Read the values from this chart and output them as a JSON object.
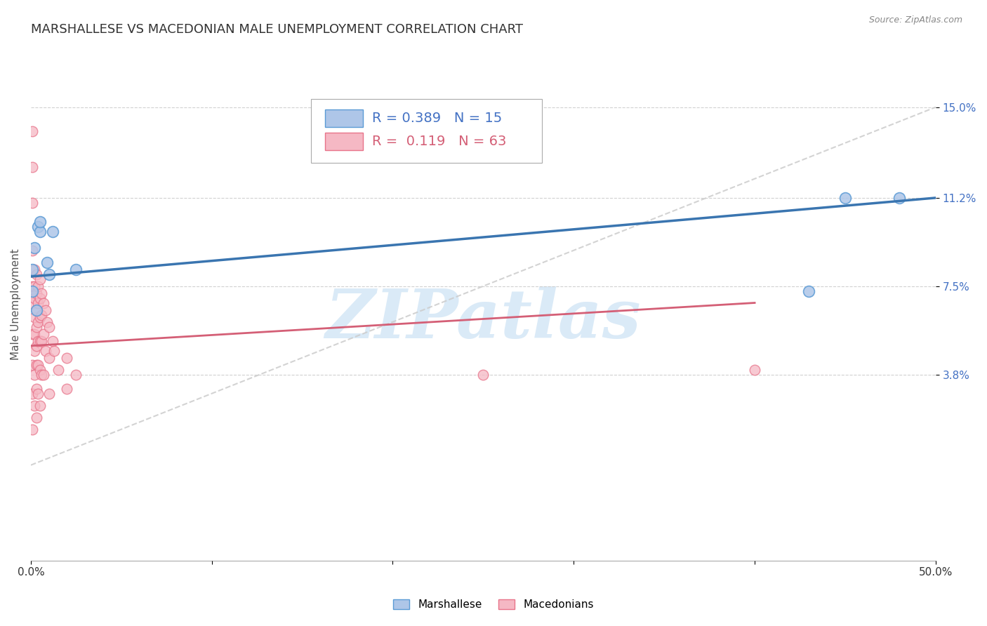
{
  "title": "MARSHALLESE VS MACEDONIAN MALE UNEMPLOYMENT CORRELATION CHART",
  "source": "Source: ZipAtlas.com",
  "ylabel": "Male Unemployment",
  "xlabel": "",
  "xlim": [
    0.0,
    0.5
  ],
  "ylim": [
    -0.04,
    0.175
  ],
  "yticks": [
    0.038,
    0.075,
    0.112,
    0.15
  ],
  "ytick_labels": [
    "3.8%",
    "7.5%",
    "11.2%",
    "15.0%"
  ],
  "blue_color": "#aec6e8",
  "pink_color": "#f5b8c4",
  "blue_edge": "#5b9bd5",
  "pink_edge": "#e8748a",
  "blue_line_color": "#3a75b0",
  "pink_line_color": "#d45f76",
  "watermark": "ZIPatlas",
  "watermark_color": "#daeaf7",
  "background_color": "#ffffff",
  "title_fontsize": 13,
  "label_fontsize": 11,
  "tick_fontsize": 11,
  "legend_fontsize": 14,
  "blue_x": [
    0.001,
    0.001,
    0.002,
    0.003,
    0.004,
    0.005,
    0.005,
    0.009,
    0.01,
    0.012,
    0.025,
    0.43,
    0.45,
    0.48
  ],
  "blue_y": [
    0.082,
    0.073,
    0.091,
    0.065,
    0.1,
    0.098,
    0.102,
    0.085,
    0.08,
    0.098,
    0.082,
    0.073,
    0.112,
    0.112
  ],
  "pink_x": [
    0.001,
    0.001,
    0.001,
    0.001,
    0.001,
    0.001,
    0.001,
    0.001,
    0.001,
    0.001,
    0.002,
    0.002,
    0.002,
    0.002,
    0.002,
    0.002,
    0.002,
    0.002,
    0.003,
    0.003,
    0.003,
    0.003,
    0.003,
    0.003,
    0.003,
    0.003,
    0.004,
    0.004,
    0.004,
    0.004,
    0.004,
    0.004,
    0.005,
    0.005,
    0.005,
    0.005,
    0.005,
    0.005,
    0.006,
    0.006,
    0.006,
    0.006,
    0.007,
    0.007,
    0.007,
    0.008,
    0.008,
    0.009,
    0.01,
    0.01,
    0.01,
    0.012,
    0.013,
    0.015,
    0.02,
    0.02,
    0.025,
    0.25,
    0.4
  ],
  "pink_y": [
    0.14,
    0.125,
    0.11,
    0.09,
    0.075,
    0.068,
    0.055,
    0.042,
    0.03,
    0.015,
    0.082,
    0.075,
    0.07,
    0.062,
    0.055,
    0.048,
    0.038,
    0.025,
    0.08,
    0.072,
    0.065,
    0.058,
    0.05,
    0.042,
    0.032,
    0.02,
    0.075,
    0.068,
    0.06,
    0.052,
    0.042,
    0.03,
    0.078,
    0.07,
    0.062,
    0.052,
    0.04,
    0.025,
    0.072,
    0.063,
    0.052,
    0.038,
    0.068,
    0.055,
    0.038,
    0.065,
    0.048,
    0.06,
    0.058,
    0.045,
    0.03,
    0.052,
    0.048,
    0.04,
    0.045,
    0.032,
    0.038,
    0.038,
    0.04
  ],
  "blue_line_x0": 0.0,
  "blue_line_y0": 0.079,
  "blue_line_x1": 0.5,
  "blue_line_y1": 0.112,
  "pink_line_x0": 0.0,
  "pink_line_y0": 0.05,
  "pink_line_x1": 0.4,
  "pink_line_y1": 0.068
}
